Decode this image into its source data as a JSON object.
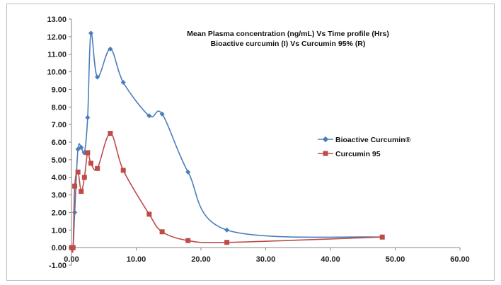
{
  "chart_data": {
    "type": "line",
    "title_lines": [
      "Mean Plasma concentration (ng/mL) Vs Time profile (Hrs)",
      "Bioactive curcumin (I) Vs Curcumin 95% (R)"
    ],
    "xlabel": "",
    "ylabel": "",
    "xlim": [
      0,
      60
    ],
    "ylim": [
      -1,
      13
    ],
    "x_ticks": [
      0,
      10,
      20,
      30,
      40,
      50,
      60
    ],
    "x_tick_labels": [
      "0.00",
      "10.00",
      "20.00",
      "30.00",
      "40.00",
      "50.00",
      "60.00"
    ],
    "y_ticks": [
      -1,
      0,
      1,
      2,
      3,
      4,
      5,
      6,
      7,
      8,
      9,
      10,
      11,
      12,
      13
    ],
    "y_tick_labels": [
      "-1.00",
      "0.00",
      "1.00",
      "2.00",
      "3.00",
      "4.00",
      "5.00",
      "6.00",
      "7.00",
      "8.00",
      "9.00",
      "10.00",
      "11.00",
      "12.00",
      "13.00"
    ],
    "grid": false,
    "legend_position": "right",
    "series": [
      {
        "name": "Bioactive Curcumin®",
        "color": "#4a7ebb",
        "marker": "diamond",
        "x": [
          0,
          0.25,
          0.5,
          1,
          1.5,
          2,
          2.5,
          3,
          4,
          6,
          8,
          12,
          14,
          18,
          24,
          48
        ],
        "y": [
          0,
          0,
          2.0,
          5.6,
          5.7,
          5.4,
          7.4,
          12.2,
          9.7,
          11.3,
          9.4,
          7.5,
          7.6,
          4.3,
          1.0,
          0.6
        ]
      },
      {
        "name": "Curcumin 95",
        "color": "#be4b48",
        "marker": "square",
        "x": [
          0,
          0.25,
          0.5,
          1,
          1.5,
          2,
          2.5,
          3,
          4,
          6,
          8,
          12,
          14,
          18,
          24,
          48
        ],
        "y": [
          0,
          0,
          3.5,
          4.3,
          3.2,
          4.0,
          5.4,
          4.8,
          4.5,
          6.5,
          4.4,
          1.9,
          0.9,
          0.4,
          0.3,
          0.6
        ]
      }
    ]
  }
}
